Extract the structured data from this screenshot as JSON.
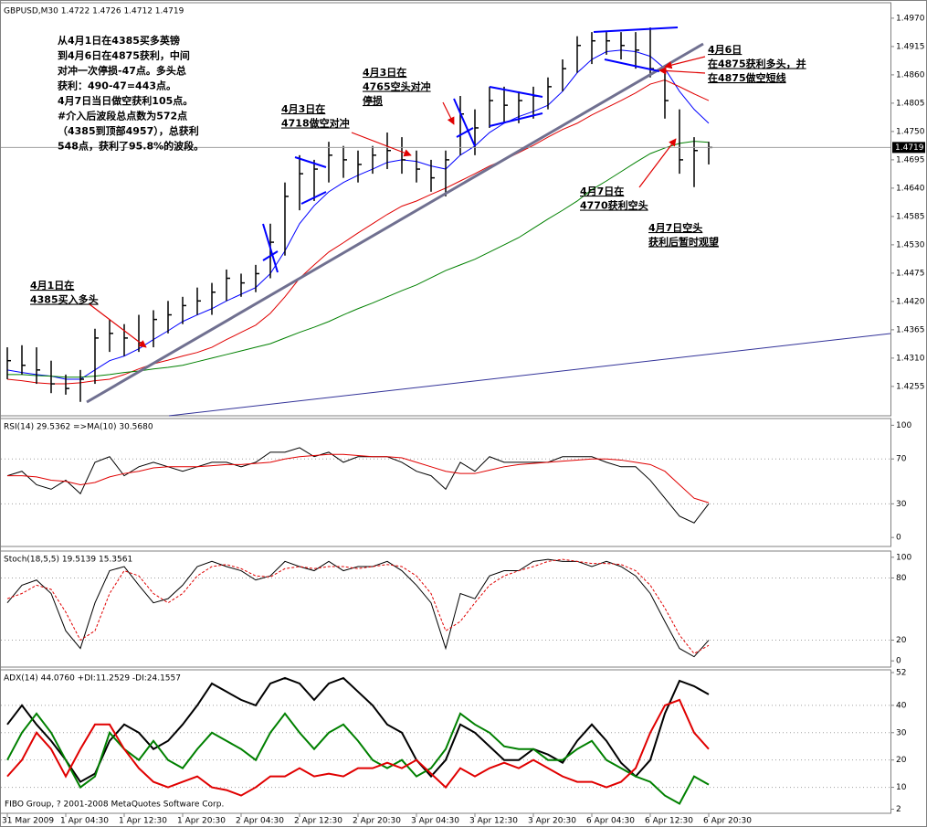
{
  "chart_data": [
    {
      "type": "ohlc",
      "title": "GBPUSD,M30  1.4722 1.4726 1.4712 1.4719",
      "categories": [
        "31 Mar 2009",
        null,
        null,
        null,
        "1 Apr 04:30",
        null,
        null,
        null,
        "1 Apr 12:30",
        null,
        null,
        null,
        "1 Apr 20:30",
        null,
        null,
        null,
        "2 Apr 04:30",
        null,
        null,
        null,
        "2 Apr 12:30",
        null,
        null,
        null,
        "2 Apr 20:30",
        null,
        null,
        null,
        "3 Apr 04:30",
        null,
        null,
        null,
        "3 Apr 12:30",
        null,
        null,
        null,
        "3 Apr 20:30",
        null,
        null,
        null,
        "6 Apr 04:30",
        null,
        null,
        null,
        "6 Apr 12:30",
        null,
        null,
        null,
        "6 Apr 20:30"
      ],
      "high": [
        1.4331,
        1.4335,
        1.4331,
        1.4305,
        1.4278,
        1.4287,
        1.4367,
        1.4385,
        1.4376,
        1.4394,
        1.4403,
        1.4421,
        1.4429,
        1.4447,
        1.4456,
        1.4482,
        1.4474,
        1.4491,
        1.4571,
        1.4651,
        1.4704,
        1.4695,
        1.473,
        1.4722,
        1.4713,
        1.4722,
        1.4748,
        1.4739,
        1.4713,
        1.4695,
        1.4713,
        1.4819,
        1.4793,
        1.4837,
        1.4837,
        1.4828,
        1.4837,
        1.4855,
        1.489,
        1.4935,
        1.4943,
        1.4943,
        1.4943,
        1.4943,
        1.4952,
        1.4872,
        1.4793,
        1.4739,
        1.473
      ],
      "low": [
        1.4269,
        1.4278,
        1.426,
        1.4242,
        1.4239,
        1.4225,
        1.426,
        1.4322,
        1.4314,
        1.4322,
        1.4331,
        1.4358,
        1.4376,
        1.4394,
        1.4394,
        1.4421,
        1.4429,
        1.4438,
        1.4465,
        1.4509,
        1.4597,
        1.4615,
        1.4651,
        1.466,
        1.4651,
        1.4668,
        1.4677,
        1.4668,
        1.4651,
        1.4633,
        1.4624,
        1.4704,
        1.4704,
        1.4757,
        1.4766,
        1.4766,
        1.4775,
        1.4793,
        1.4828,
        1.4864,
        1.4881,
        1.4899,
        1.489,
        1.4872,
        1.4855,
        1.4775,
        1.4668,
        1.4642,
        1.4686
      ],
      "close": [
        1.4305,
        1.4296,
        1.4287,
        1.426,
        1.4251,
        1.4269,
        1.4349,
        1.4358,
        1.4349,
        1.434,
        1.4385,
        1.4394,
        1.4412,
        1.4421,
        1.4438,
        1.4465,
        1.4456,
        1.4474,
        1.4535,
        1.4624,
        1.4668,
        1.4677,
        1.4704,
        1.4695,
        1.4686,
        1.4704,
        1.4713,
        1.4695,
        1.4677,
        1.466,
        1.4695,
        1.4784,
        1.4757,
        1.481,
        1.4801,
        1.481,
        1.4819,
        1.4837,
        1.4872,
        1.4917,
        1.4926,
        1.4926,
        1.4917,
        1.4908,
        1.4872,
        1.481,
        1.4695,
        1.4713,
        1.4719
      ],
      "color": "#000000",
      "overlays": [
        {
          "color": "#0000ff",
          "values": [
            1.4287,
            1.4282,
            1.4278,
            1.4275,
            1.4269,
            1.4269,
            1.4287,
            1.4305,
            1.4314,
            1.4328,
            1.4346,
            1.4363,
            1.4381,
            1.4394,
            1.4406,
            1.4421,
            1.4434,
            1.4447,
            1.4474,
            1.4518,
            1.4571,
            1.4606,
            1.4633,
            1.4651,
            1.4665,
            1.4677,
            1.469,
            1.4695,
            1.4692,
            1.4683,
            1.4677,
            1.4704,
            1.4722,
            1.4748,
            1.4766,
            1.4779,
            1.4789,
            1.4801,
            1.4828,
            1.4864,
            1.489,
            1.4905,
            1.4908,
            1.4905,
            1.4896,
            1.4872,
            1.4828,
            1.4793,
            1.4766
          ]
        },
        {
          "color": "#e00000",
          "values": [
            1.4269,
            1.4266,
            1.4262,
            1.426,
            1.426,
            1.4262,
            1.4266,
            1.4269,
            1.4278,
            1.4289,
            1.4299,
            1.4306,
            1.4314,
            1.4321,
            1.4331,
            1.4346,
            1.436,
            1.4374,
            1.4397,
            1.4429,
            1.4465,
            1.4491,
            1.4516,
            1.4534,
            1.4553,
            1.4571,
            1.4589,
            1.4605,
            1.4615,
            1.4628,
            1.464,
            1.4654,
            1.4668,
            1.4683,
            1.4695,
            1.4709,
            1.4723,
            1.4739,
            1.4754,
            1.4766,
            1.4782,
            1.4796,
            1.481,
            1.4825,
            1.4842,
            1.485,
            1.4837,
            1.4823,
            1.481
          ]
        },
        {
          "color": "#008000",
          "values": [
            1.4278,
            1.4278,
            1.4276,
            1.4275,
            1.4273,
            1.4273,
            1.4275,
            1.4278,
            1.4282,
            1.4285,
            1.4289,
            1.4292,
            1.4296,
            1.4303,
            1.431,
            1.4317,
            1.4324,
            1.4331,
            1.4338,
            1.4349,
            1.436,
            1.437,
            1.4381,
            1.4394,
            1.4406,
            1.4417,
            1.4429,
            1.4441,
            1.4452,
            1.4466,
            1.448,
            1.4491,
            1.4502,
            1.4516,
            1.453,
            1.4544,
            1.4562,
            1.458,
            1.4597,
            1.4615,
            1.4637,
            1.4654,
            1.4672,
            1.469,
            1.4707,
            1.4718,
            1.4727,
            1.4731,
            1.4729
          ]
        }
      ],
      "last_price": 1.4719,
      "ylim": [
        1.4198,
        1.5
      ],
      "yticks": [
        {
          "value": 1.497,
          "label": "1.4970"
        },
        1.4915,
        {
          "value": 1.486,
          "label": "1.4860"
        },
        1.4805,
        {
          "value": 1.475,
          "label": "1.4750"
        },
        1.4695,
        {
          "value": 1.464,
          "label": "1.4640"
        },
        1.4585,
        {
          "value": 1.453,
          "label": "1.4530"
        },
        1.4475,
        {
          "value": 1.442,
          "label": "1.4420"
        },
        1.4365,
        {
          "value": 1.431,
          "label": "1.4310"
        },
        1.4255
      ],
      "grid": false,
      "annotations": [
        {
          "lines": [
            "从4月1日在4385买多英镑",
            "到4月6日在4875获利，中间",
            "对冲一次停损-47点。多头总",
            "获利：490-47=443点。",
            "4月7日当日做空获利105点。",
            "#介入后波段总点数为572点",
            "（4385到顶部4957），总获利",
            "548点，获利了95.8%的波段。"
          ]
        },
        {
          "lines": [
            "4月1日在",
            "4385买入多头"
          ]
        },
        {
          "lines": [
            "4月3日在",
            "4718做空对冲"
          ]
        },
        {
          "lines": [
            "4月3日在",
            "4765空头对冲",
            "停损"
          ]
        },
        {
          "lines": [
            "4月6日",
            "在4875获利多头，并",
            "在4875做空短线"
          ]
        },
        {
          "lines": [
            "4月7日在",
            "4770获利空头"
          ]
        },
        {
          "lines": [
            "4月7日空头",
            "获利后暂时观望"
          ]
        }
      ]
    },
    {
      "type": "line",
      "title": "RSI(14) 29.5362  =>MA(10) 30.5680",
      "series": [
        {
          "color": "#000000",
          "values": [
            55,
            59,
            47,
            43,
            51,
            39,
            67,
            72,
            55,
            63,
            67,
            63,
            59,
            63,
            67,
            67,
            63,
            67,
            76,
            76,
            80,
            72,
            76,
            67,
            72,
            72,
            72,
            67,
            59,
            55,
            43,
            67,
            59,
            72,
            67,
            67,
            67,
            67,
            72,
            72,
            72,
            67,
            63,
            63,
            51,
            35,
            19,
            13,
            30
          ]
        },
        {
          "color": "#e00000",
          "values": [
            55,
            55,
            54,
            51,
            50,
            47,
            49,
            54,
            57,
            59,
            62,
            63,
            63,
            63,
            64,
            65,
            65,
            66,
            67,
            70,
            72,
            73,
            74,
            74,
            73,
            72,
            72,
            71,
            67,
            63,
            59,
            57,
            57,
            60,
            63,
            65,
            66,
            67,
            68,
            69,
            70,
            70,
            69,
            67,
            65,
            59,
            47,
            35,
            31
          ]
        }
      ],
      "ylim": [
        -8,
        106
      ],
      "yticks": [
        0,
        30,
        70,
        100
      ],
      "grid": "inner"
    },
    {
      "type": "line",
      "title": "Stoch(18,5,5) 19.5139 15.3561",
      "series": [
        {
          "color": "#000000",
          "values": [
            56,
            73,
            78,
            65,
            29,
            12,
            56,
            87,
            91,
            73,
            56,
            60,
            73,
            91,
            96,
            91,
            87,
            78,
            82,
            96,
            91,
            87,
            96,
            87,
            91,
            91,
            96,
            87,
            73,
            56,
            12,
            65,
            60,
            82,
            87,
            87,
            96,
            98,
            96,
            96,
            91,
            96,
            91,
            82,
            65,
            38,
            12,
            4,
            20
          ]
        },
        {
          "color": "#e00000",
          "dashed": true,
          "values": [
            60,
            65,
            73,
            69,
            47,
            20,
            29,
            65,
            87,
            82,
            65,
            56,
            65,
            82,
            91,
            93,
            89,
            82,
            81,
            89,
            91,
            89,
            91,
            91,
            89,
            91,
            93,
            91,
            82,
            65,
            29,
            38,
            56,
            73,
            82,
            87,
            91,
            96,
            98,
            96,
            94,
            94,
            93,
            87,
            73,
            51,
            25,
            7,
            15
          ]
        }
      ],
      "ylim": [
        -6,
        106
      ],
      "yticks": [
        0,
        20,
        80,
        100
      ],
      "grid": "inner"
    },
    {
      "type": "line",
      "title": "ADX(14) 44.0760 +DI:11.2529 -DI:24.1557",
      "series": [
        {
          "color": "#000000",
          "width": 2,
          "values": [
            33,
            40,
            33,
            27,
            20,
            12,
            15,
            27,
            33,
            30,
            24,
            27,
            33,
            40,
            48,
            45,
            42,
            40,
            48,
            50,
            48,
            42,
            48,
            50,
            45,
            40,
            33,
            30,
            20,
            14,
            20,
            33,
            30,
            25,
            20,
            20,
            24,
            22,
            19,
            27,
            33,
            27,
            19,
            14,
            20,
            37,
            49,
            47,
            44
          ]
        },
        {
          "color": "#008000",
          "width": 2,
          "values": [
            20,
            30,
            37,
            30,
            20,
            10,
            14,
            30,
            24,
            20,
            27,
            20,
            17,
            24,
            30,
            27,
            24,
            20,
            30,
            37,
            30,
            24,
            30,
            33,
            27,
            20,
            17,
            20,
            14,
            17,
            24,
            37,
            33,
            30,
            25,
            24,
            24,
            20,
            20,
            24,
            27,
            20,
            17,
            14,
            12,
            7,
            4,
            14,
            11
          ]
        },
        {
          "color": "#e00000",
          "width": 2,
          "values": [
            14,
            20,
            30,
            24,
            14,
            24,
            33,
            33,
            24,
            17,
            12,
            10,
            12,
            14,
            10,
            9,
            7,
            10,
            14,
            14,
            17,
            14,
            15,
            14,
            17,
            17,
            19,
            17,
            20,
            15,
            10,
            17,
            14,
            17,
            19,
            17,
            20,
            17,
            14,
            12,
            12,
            10,
            12,
            17,
            30,
            40,
            42,
            30,
            24
          ]
        }
      ],
      "ylim": [
        0.5,
        53
      ],
      "yticks": [
        2,
        10,
        20,
        30,
        40,
        52
      ],
      "grid": "inner"
    }
  ],
  "footer": "FIBO Group, ? 2001-2008 MetaQuotes Software Corp."
}
